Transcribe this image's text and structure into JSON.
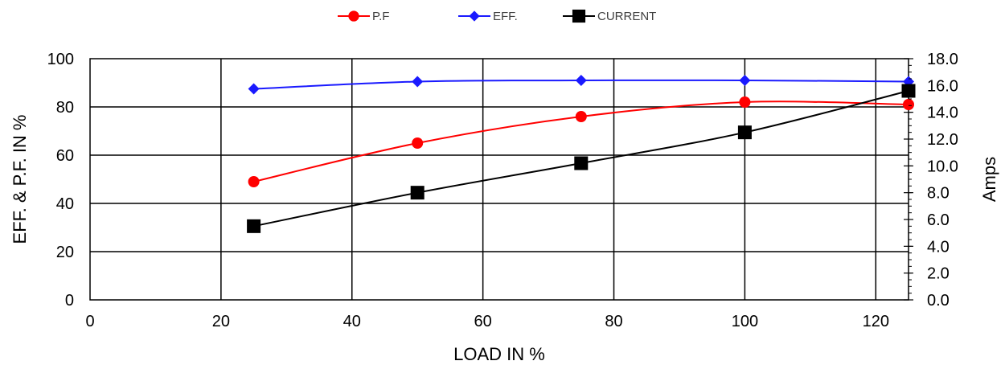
{
  "chart_data": {
    "type": "line",
    "xlabel": "LOAD IN %",
    "ylabel": "EFF. & P.F. IN %",
    "y2label": "Amps",
    "xlim": [
      0,
      125
    ],
    "ylim": [
      0,
      100
    ],
    "y2lim": [
      0,
      18
    ],
    "x_ticks": [
      "0",
      "20",
      "40",
      "60",
      "80",
      "100",
      "120"
    ],
    "y_ticks": [
      "0",
      "20",
      "40",
      "60",
      "80",
      "100"
    ],
    "y2_ticks": [
      "0.0",
      "2.0",
      "4.0",
      "6.0",
      "8.0",
      "10.0",
      "12.0",
      "14.0",
      "16.0",
      "18.0"
    ],
    "grid": true,
    "legend_position": "top",
    "x": [
      25,
      50,
      75,
      100,
      125
    ],
    "series": [
      {
        "name": "P.F",
        "axis": "left",
        "marker": "circle",
        "color": "#ff0000",
        "values": [
          49,
          65,
          76,
          82,
          81
        ]
      },
      {
        "name": "EFF.",
        "axis": "left",
        "marker": "diamond",
        "color": "#1a1aff",
        "values": [
          87.5,
          90.5,
          91,
          91,
          90.5
        ]
      },
      {
        "name": "CURRENT",
        "axis": "right",
        "marker": "square",
        "color": "#000000",
        "values": [
          5.5,
          8.0,
          10.2,
          12.5,
          15.6
        ]
      }
    ]
  }
}
